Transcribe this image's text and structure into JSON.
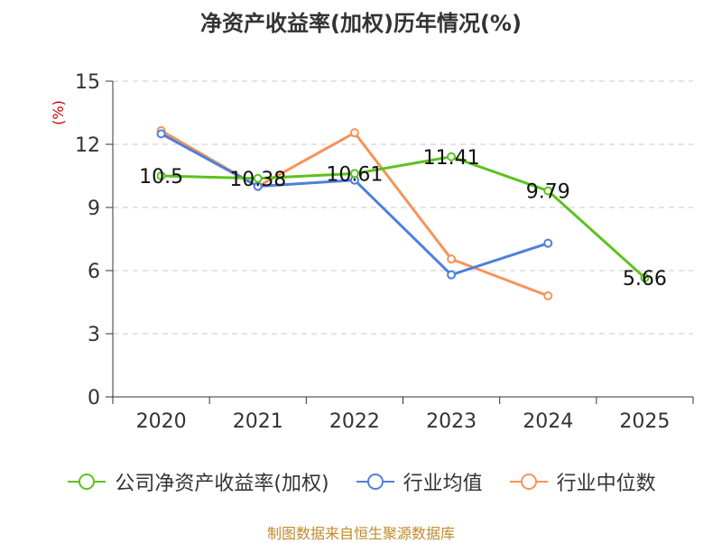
{
  "chart_data": {
    "type": "line",
    "title": "净资产收益率(加权)历年情况(%)",
    "ylabel": "(%)",
    "xlabel": "",
    "categories": [
      "2020",
      "2021",
      "2022",
      "2023",
      "2024",
      "2025"
    ],
    "ylim": [
      0,
      15
    ],
    "yticks": [
      0,
      3,
      6,
      9,
      12,
      15
    ],
    "grid": true,
    "legend_position": "bottom",
    "series": [
      {
        "name": "公司净资产收益率(加权)",
        "color": "#5cc21c",
        "values": [
          10.5,
          10.38,
          10.61,
          11.41,
          9.79,
          5.66
        ],
        "labels": [
          "10.5",
          "10.38",
          "10.61",
          "11.41",
          "9.79",
          "5.66"
        ]
      },
      {
        "name": "行业均值",
        "color": "#4f7fdc",
        "values": [
          12.5,
          10.0,
          10.3,
          5.8,
          7.3,
          null
        ]
      },
      {
        "name": "行业中位数",
        "color": "#f7935a",
        "values": [
          12.65,
          10.0,
          12.55,
          6.55,
          4.8,
          null
        ]
      }
    ],
    "source": "制图数据来自恒生聚源数据库"
  }
}
